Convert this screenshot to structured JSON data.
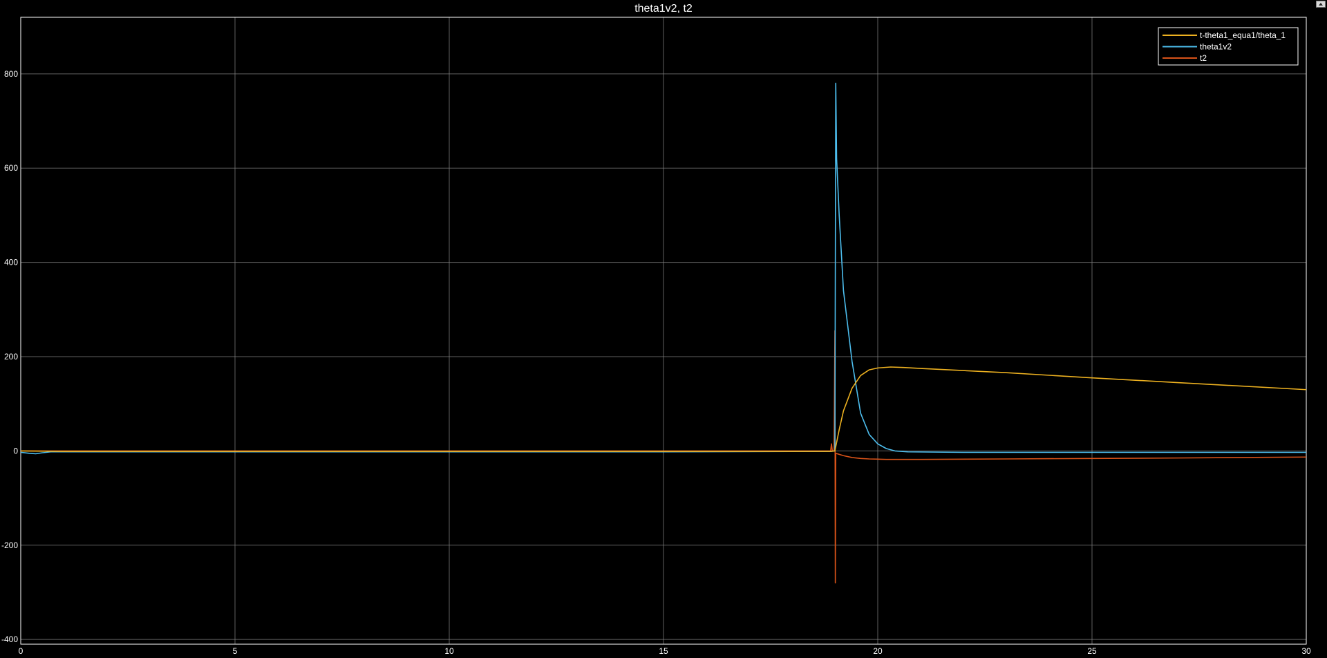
{
  "window": {
    "undock_icon": "undock-arrow-icon"
  },
  "colors": {
    "background": "#000000",
    "axes_border": "#ffffff",
    "grid": "#808080",
    "text": "#ffffff"
  },
  "chart_data": {
    "type": "line",
    "title": "theta1v2, t2",
    "xlabel": "",
    "ylabel": "",
    "xlim": [
      0,
      30
    ],
    "ylim": [
      -410,
      920
    ],
    "x_ticks": [
      0,
      5,
      10,
      15,
      20,
      25,
      30
    ],
    "y_ticks": [
      -400,
      -200,
      0,
      200,
      400,
      600,
      800
    ],
    "grid": true,
    "legend_position": "top-right",
    "series": [
      {
        "name": "t-theta1_equa1/theta_1",
        "color": "#edb120",
        "points": [
          [
            0,
            0
          ],
          [
            1,
            -1
          ],
          [
            5,
            -1
          ],
          [
            10,
            -1
          ],
          [
            15,
            -1
          ],
          [
            18.9,
            -1
          ],
          [
            19.0,
            0
          ],
          [
            19.1,
            45
          ],
          [
            19.2,
            85
          ],
          [
            19.4,
            133
          ],
          [
            19.6,
            160
          ],
          [
            19.8,
            172
          ],
          [
            20.0,
            176
          ],
          [
            20.3,
            178
          ],
          [
            20.6,
            177
          ],
          [
            21,
            175
          ],
          [
            23,
            166
          ],
          [
            25,
            155
          ],
          [
            27,
            145
          ],
          [
            30,
            130
          ]
        ]
      },
      {
        "name": "theta1v2",
        "color": "#4dbeee",
        "points": [
          [
            0,
            -3
          ],
          [
            0.2,
            -5
          ],
          [
            0.35,
            -6
          ],
          [
            0.5,
            -4
          ],
          [
            0.7,
            -2
          ],
          [
            1,
            -2
          ],
          [
            5,
            -2
          ],
          [
            10,
            -2
          ],
          [
            15,
            -2
          ],
          [
            18.9,
            -1
          ],
          [
            19.0,
            0
          ],
          [
            19.02,
            780
          ],
          [
            19.04,
            620
          ],
          [
            19.1,
            500
          ],
          [
            19.2,
            340
          ],
          [
            19.4,
            190
          ],
          [
            19.6,
            80
          ],
          [
            19.8,
            35
          ],
          [
            20.0,
            15
          ],
          [
            20.2,
            5
          ],
          [
            20.4,
            0
          ],
          [
            20.7,
            -2
          ],
          [
            22,
            -3
          ],
          [
            25,
            -3
          ],
          [
            30,
            -3
          ]
        ]
      },
      {
        "name": "t2",
        "color": "#d95319",
        "points": [
          [
            0,
            0
          ],
          [
            1,
            0
          ],
          [
            5,
            0
          ],
          [
            10,
            0
          ],
          [
            15,
            0
          ],
          [
            18.9,
            0
          ],
          [
            18.92,
            15
          ],
          [
            18.94,
            0
          ],
          [
            18.98,
            0
          ],
          [
            19.0,
            255
          ],
          [
            19.01,
            -280
          ],
          [
            19.02,
            -5
          ],
          [
            19.2,
            -10
          ],
          [
            19.4,
            -14
          ],
          [
            19.6,
            -16
          ],
          [
            19.8,
            -17
          ],
          [
            20.2,
            -18
          ],
          [
            21,
            -18
          ],
          [
            23,
            -17
          ],
          [
            25,
            -16
          ],
          [
            27,
            -15
          ],
          [
            30,
            -13
          ]
        ]
      }
    ]
  }
}
